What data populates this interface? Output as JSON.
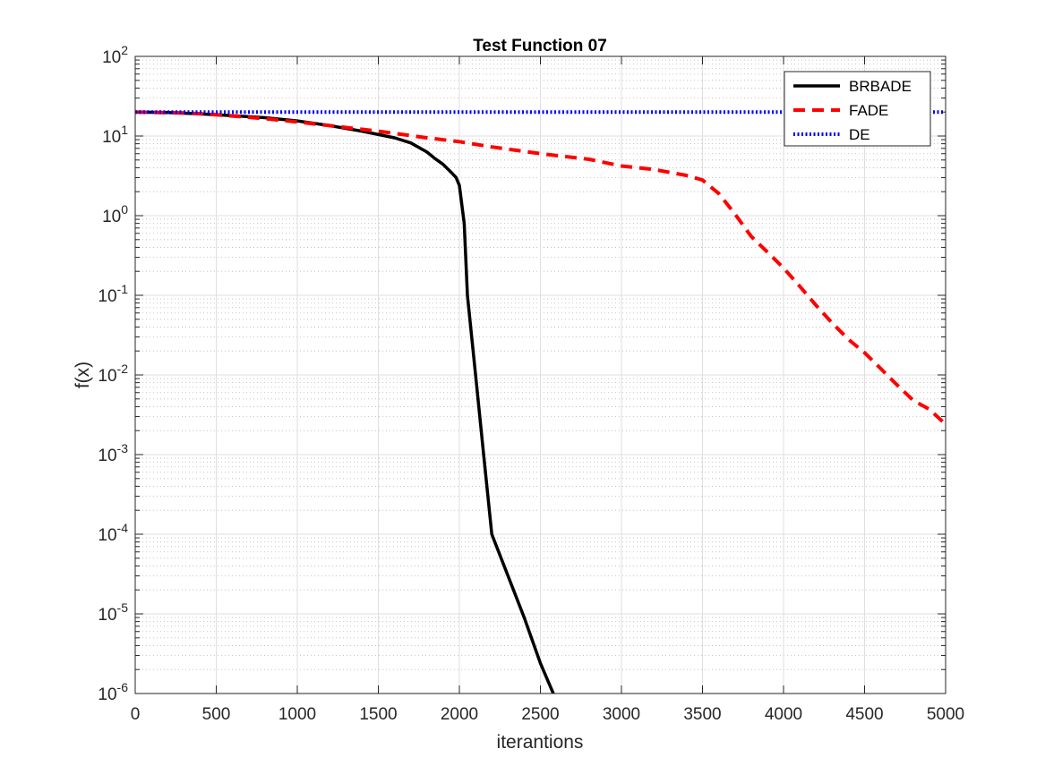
{
  "chart_data": {
    "type": "line",
    "title": "Test Function 07",
    "xlabel": "iterantions",
    "ylabel": "f(x)",
    "xlim": [
      0,
      5000
    ],
    "ylim": [
      1e-06,
      100
    ],
    "yscale": "log",
    "grid": true,
    "minor_grid": true,
    "legend_position": "top-right",
    "x_ticks": [
      0,
      500,
      1000,
      1500,
      2000,
      2500,
      3000,
      3500,
      4000,
      4500,
      5000
    ],
    "y_tick_exponents": [
      -6,
      -5,
      -4,
      -3,
      -2,
      -1,
      0,
      1,
      2
    ],
    "y_tick_base": "10",
    "series": [
      {
        "name": "BRBADE",
        "color": "#000000",
        "style": "solid",
        "x": [
          0,
          200,
          400,
          600,
          800,
          1000,
          1200,
          1400,
          1600,
          1700,
          1800,
          1850,
          1900,
          1950,
          1980,
          2000,
          2030,
          2050,
          2100,
          2150,
          2200,
          2300,
          2400,
          2500,
          2600,
          2700,
          2720
        ],
        "y": [
          20,
          19.7,
          19,
          18,
          17,
          15.5,
          13.5,
          11.5,
          9.5,
          8.2,
          6.3,
          5.2,
          4.4,
          3.5,
          3.0,
          2.4,
          0.8,
          0.1,
          0.01,
          0.001,
          0.0001,
          3e-05,
          9e-06,
          2.4e-06,
          8e-07,
          5e-08,
          1e-06
        ]
      },
      {
        "name": "FADE",
        "color": "#ff0000",
        "style": "dashed",
        "x": [
          0,
          300,
          500,
          800,
          1000,
          1200,
          1500,
          1800,
          2000,
          2200,
          2500,
          2800,
          3000,
          3200,
          3400,
          3500,
          3600,
          3700,
          3800,
          3900,
          4000,
          4100,
          4200,
          4300,
          4400,
          4500,
          4600,
          4700,
          4800,
          4900,
          5000
        ],
        "y": [
          20,
          19.5,
          18.5,
          16.5,
          15,
          13.5,
          11.5,
          9.5,
          8.5,
          7.3,
          6,
          5.1,
          4.2,
          3.8,
          3.2,
          2.8,
          1.9,
          1.05,
          0.55,
          0.35,
          0.22,
          0.13,
          0.075,
          0.045,
          0.028,
          0.019,
          0.012,
          0.0075,
          0.0048,
          0.0037,
          0.0024
        ]
      },
      {
        "name": "DE",
        "color": "#0000ff",
        "style": "dotted",
        "x": [
          0,
          5000
        ],
        "y": [
          20,
          20
        ]
      }
    ]
  }
}
